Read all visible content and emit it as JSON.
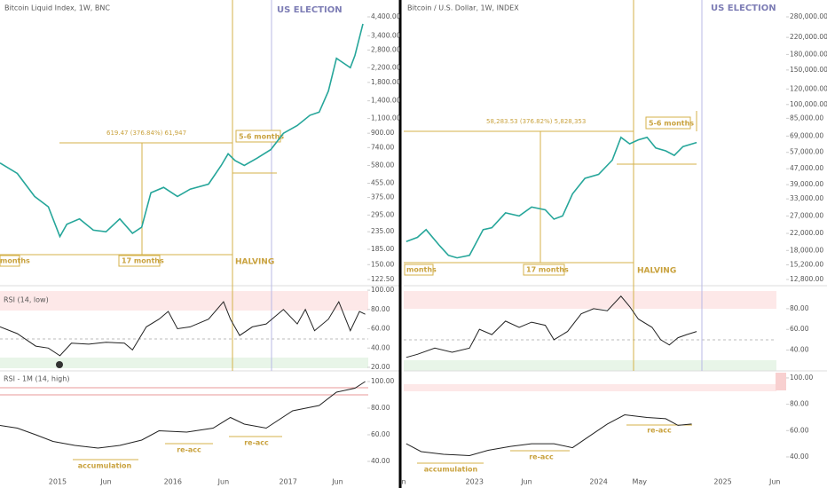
{
  "panels": [
    {
      "title": "Bitcoin Liquid Index, 1W, BNC",
      "election_label": "US ELECTION",
      "measure_label": "619.47 (376.84%) 61,947",
      "duration_label": "5-6 months",
      "left_label": "months",
      "span_label": "17 months",
      "halving_label": "HALVING",
      "rsi_label": "RSI (14, low)",
      "rsi_m_label": "RSI - 1M (14, high)",
      "annotations": [
        "accumulation",
        "re-acc",
        "re-acc"
      ],
      "xlim": [
        2014.5,
        2017.95
      ],
      "xticks": [
        2015,
        {
          "value": 2015.42,
          "label": "Jun"
        },
        2016,
        {
          "value": 2016.44,
          "label": "Jun"
        },
        2017,
        {
          "value": 2017.43,
          "label": "Jun"
        }
      ],
      "price": {
        "log": true,
        "color": "#26a69a",
        "ylim": [
          122.5,
          4400
        ],
        "yticks": [
          {
            "value": 4400,
            "label": "4,400.00"
          },
          {
            "value": 3400,
            "label": "3,400.00"
          },
          {
            "value": 2800,
            "label": "2,800.00"
          },
          {
            "value": 2200,
            "label": "2,200.00"
          },
          {
            "value": 1800,
            "label": "1,800.00"
          },
          {
            "value": 1400,
            "label": "1,400.00"
          },
          {
            "value": 1100,
            "label": "1,100.00"
          },
          {
            "value": 900,
            "label": "900.00"
          },
          {
            "value": 740,
            "label": "740.00"
          },
          {
            "value": 580,
            "label": "580.00"
          },
          {
            "value": 455,
            "label": "455.00"
          },
          {
            "value": 375,
            "label": "375.00"
          },
          {
            "value": 295,
            "label": "295.00"
          },
          {
            "value": 235,
            "label": "235.00"
          },
          {
            "value": 185,
            "label": "185.00"
          },
          {
            "value": 150,
            "label": "150.00"
          },
          {
            "value": 122.5,
            "label": "122.50"
          }
        ],
        "x": [
          2014.5,
          2014.65,
          2014.8,
          2014.92,
          2015.02,
          2015.08,
          2015.19,
          2015.31,
          2015.42,
          2015.54,
          2015.65,
          2015.73,
          2015.81,
          2015.92,
          2016.04,
          2016.15,
          2016.31,
          2016.42,
          2016.48,
          2016.54,
          2016.62,
          2016.73,
          2016.85,
          2016.96,
          2017.08,
          2017.19,
          2017.27,
          2017.35,
          2017.42,
          2017.54,
          2017.58,
          2017.65
        ],
        "close": [
          600,
          520,
          380,
          330,
          220,
          260,
          280,
          240,
          235,
          280,
          230,
          250,
          400,
          430,
          380,
          420,
          450,
          580,
          680,
          620,
          580,
          640,
          720,
          900,
          1000,
          1150,
          1200,
          1600,
          2500,
          2200,
          2600,
          4000
        ]
      },
      "rsi": {
        "color": "#222",
        "ylim": [
          16.3,
          101
        ],
        "yticks": [
          {
            "value": 100,
            "label": "100.00"
          },
          {
            "value": 80,
            "label": "80.00"
          },
          {
            "value": 60,
            "label": "60.00"
          },
          {
            "value": 40,
            "label": "40.00"
          },
          {
            "value": 20,
            "label": "20.00"
          }
        ],
        "x": [
          2014.5,
          2014.65,
          2014.81,
          2014.92,
          2015.02,
          2015.12,
          2015.27,
          2015.42,
          2015.58,
          2015.65,
          2015.77,
          2015.88,
          2015.96,
          2016.04,
          2016.15,
          2016.31,
          2016.44,
          2016.5,
          2016.58,
          2016.69,
          2016.81,
          2016.96,
          2017.08,
          2017.15,
          2017.23,
          2017.35,
          2017.44,
          2017.54,
          2017.62,
          2017.67
        ],
        "values": [
          62,
          55,
          42,
          40,
          32,
          45,
          44,
          46,
          45,
          38,
          62,
          70,
          78,
          60,
          62,
          70,
          88,
          70,
          53,
          62,
          65,
          80,
          65,
          80,
          58,
          70,
          88,
          58,
          78,
          75
        ]
      },
      "rsi_1m": {
        "color": "#222",
        "ylim": [
          30,
          106.67
        ],
        "yticks": [
          {
            "value": 100,
            "label": "100.00"
          },
          {
            "value": 80,
            "label": "80.00"
          },
          {
            "value": 60,
            "label": "60.00"
          },
          {
            "value": 40,
            "label": "40.00"
          }
        ],
        "x": [
          2014.5,
          2014.65,
          2014.81,
          2014.96,
          2015.15,
          2015.35,
          2015.54,
          2015.73,
          2015.88,
          2016.12,
          2016.35,
          2016.5,
          2016.62,
          2016.81,
          2017.04,
          2017.27,
          2017.42,
          2017.58,
          2017.67
        ],
        "values": [
          67,
          65,
          60,
          55,
          52,
          50,
          52,
          56,
          63,
          62,
          65,
          73,
          68,
          65,
          78,
          82,
          92,
          95,
          100
        ]
      }
    },
    {
      "title": "Bitcoin / U.S. Dollar, 1W, INDEX",
      "election_label": "US ELECTION",
      "measure_label": "58,283.53 (376.82%) 5,828,353",
      "duration_label": "5-6 months",
      "left_label": "months",
      "span_label": "17 months",
      "halving_label": "HALVING",
      "annotations": [
        "accumulation",
        "re-acc",
        "re-acc"
      ],
      "xlim": [
        2022.43,
        2025.84
      ],
      "xticks": [
        {
          "value": 2022.43,
          "label": "n"
        },
        2023,
        {
          "value": 2023.42,
          "label": "Jun"
        },
        2024,
        {
          "value": 2024.33,
          "label": "May"
        },
        2025,
        {
          "value": 2025.42,
          "label": "Jun"
        }
      ],
      "price": {
        "log": true,
        "color": "#26a69a",
        "ylim": [
          12800,
          280000
        ],
        "yticks": [
          {
            "value": 280000,
            "label": "280,000.00"
          },
          {
            "value": 220000,
            "label": "220,000.00"
          },
          {
            "value": 180000,
            "label": "180,000.00"
          },
          {
            "value": 150000,
            "label": "150,000.00"
          },
          {
            "value": 120000,
            "label": "120,000.00"
          },
          {
            "value": 100000,
            "label": "100,000.00"
          },
          {
            "value": 85000,
            "label": "85,000.00"
          },
          {
            "value": 69000,
            "label": "69,000.00"
          },
          {
            "value": 57000,
            "label": "57,000.00"
          },
          {
            "value": 47000,
            "label": "47,000.00"
          },
          {
            "value": 39000,
            "label": "39,000.00"
          },
          {
            "value": 33000,
            "label": "33,000.00"
          },
          {
            "value": 27000,
            "label": "27,000.00"
          },
          {
            "value": 22000,
            "label": "22,000.00"
          },
          {
            "value": 18000,
            "label": "18,000.00"
          },
          {
            "value": 15200,
            "label": "15,200.00"
          },
          {
            "value": 12800,
            "label": "12,800.00"
          }
        ],
        "x": [
          2022.45,
          2022.54,
          2022.61,
          2022.72,
          2022.79,
          2022.86,
          2022.96,
          2023.07,
          2023.14,
          2023.25,
          2023.36,
          2023.46,
          2023.57,
          2023.64,
          2023.71,
          2023.79,
          2023.89,
          2024.0,
          2024.11,
          2024.18,
          2024.25,
          2024.32,
          2024.39,
          2024.46,
          2024.54,
          2024.61,
          2024.68,
          2024.79
        ],
        "close": [
          20000,
          21000,
          23000,
          19000,
          17000,
          16500,
          17000,
          23000,
          23500,
          28000,
          27000,
          30000,
          29000,
          26000,
          27000,
          35000,
          42000,
          44000,
          52000,
          68000,
          63000,
          66000,
          68000,
          60000,
          58000,
          55000,
          61000,
          64000
        ]
      },
      "rsi": {
        "color": "#222",
        "ylim": [
          20,
          97
        ],
        "yticks": [
          {
            "value": 80,
            "label": "80.00"
          },
          {
            "value": 60,
            "label": "60.00"
          },
          {
            "value": 40,
            "label": "40.00"
          }
        ],
        "x": [
          2022.45,
          2022.54,
          2022.68,
          2022.82,
          2022.96,
          2023.04,
          2023.14,
          2023.25,
          2023.36,
          2023.46,
          2023.57,
          2023.64,
          2023.75,
          2023.86,
          2023.96,
          2024.07,
          2024.18,
          2024.25,
          2024.32,
          2024.43,
          2024.5,
          2024.57,
          2024.64,
          2024.71,
          2024.79
        ],
        "values": [
          33,
          36,
          42,
          38,
          42,
          60,
          55,
          68,
          62,
          67,
          64,
          50,
          58,
          75,
          80,
          78,
          92,
          82,
          70,
          62,
          50,
          45,
          52,
          55,
          58
        ]
      },
      "rsi_1m": {
        "color": "#222",
        "ylim": [
          26.5,
          104
        ],
        "yticks": [
          {
            "value": 100,
            "label": "100.00"
          },
          {
            "value": 80,
            "label": "80.00"
          },
          {
            "value": 60,
            "label": "60.00"
          },
          {
            "value": 40,
            "label": "40.00"
          }
        ],
        "x": [
          2022.45,
          2022.57,
          2022.75,
          2022.96,
          2023.11,
          2023.29,
          2023.46,
          2023.64,
          2023.79,
          2023.93,
          2024.07,
          2024.21,
          2024.39,
          2024.54,
          2024.64,
          2024.75
        ],
        "values": [
          50,
          44,
          42,
          41,
          45,
          48,
          50,
          50,
          47,
          56,
          65,
          72,
          70,
          69,
          64,
          65
        ]
      }
    }
  ]
}
